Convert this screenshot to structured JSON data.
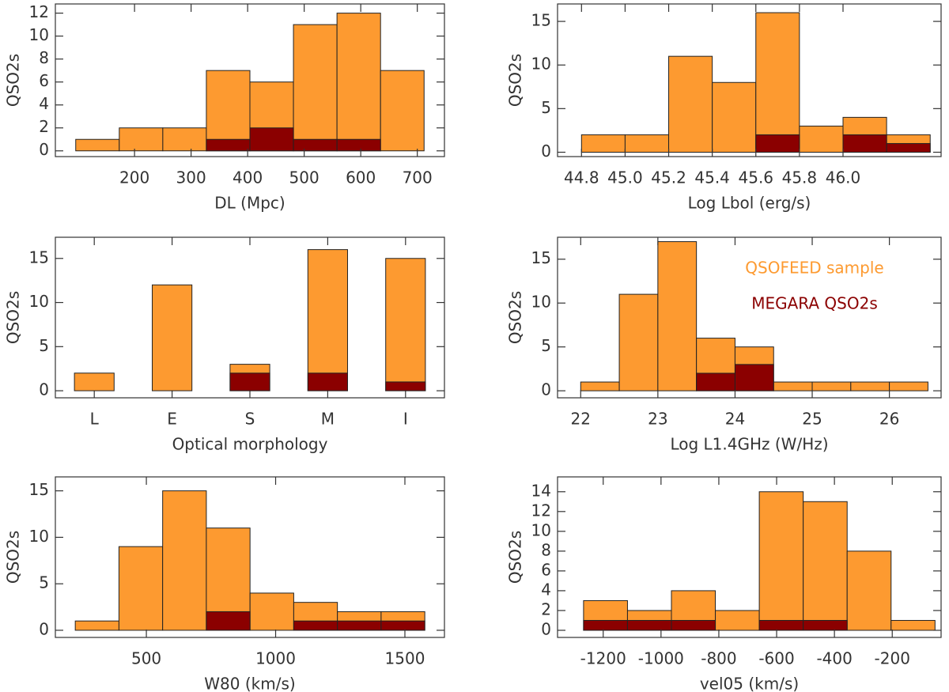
{
  "chart_data": [
    {
      "type": "histogram",
      "xlabel": "DL (Mpc)",
      "ylabel": "QSO2s",
      "bins": [
        96,
        173,
        250,
        327,
        404,
        481,
        558,
        635,
        712
      ],
      "series": [
        {
          "name": "QSOFEED sample",
          "color": "#fd9a30",
          "values": [
            1,
            2,
            2,
            7,
            6,
            11,
            12,
            7
          ]
        },
        {
          "name": "MEGARA QSO2s",
          "color": "#8b0000",
          "values": [
            0,
            0,
            0,
            1,
            2,
            1,
            1,
            0
          ]
        }
      ],
      "xlim": [
        60,
        748
      ],
      "xticks": [
        200,
        300,
        400,
        500,
        600,
        700
      ],
      "ylim": [
        -0.5,
        12.8
      ],
      "yticks": [
        0,
        2,
        4,
        6,
        8,
        10,
        12
      ]
    },
    {
      "type": "histogram",
      "xlabel": "Log Lbol (erg/s)",
      "ylabel": "QSO2s",
      "bins": [
        44.8,
        45.0,
        45.2,
        45.4,
        45.6,
        45.8,
        46.0,
        46.2,
        46.4
      ],
      "series": [
        {
          "name": "QSOFEED sample",
          "color": "#fd9a30",
          "values": [
            2,
            2,
            11,
            8,
            16,
            3,
            4,
            2
          ]
        },
        {
          "name": "MEGARA QSO2s",
          "color": "#8b0000",
          "values": [
            0,
            0,
            0,
            0,
            2,
            0,
            2,
            1
          ]
        }
      ],
      "xlim": [
        44.69,
        46.45
      ],
      "xticks": [
        44.8,
        {
          "value": 45,
          "label": "45.0"
        },
        45.2,
        45.4,
        45.6,
        45.8,
        {
          "value": 46,
          "label": "46.0"
        }
      ],
      "ylim": [
        -0.5,
        17
      ],
      "yticks": [
        0,
        5,
        10,
        15
      ]
    },
    {
      "type": "bar",
      "xlabel": "Optical morphology",
      "ylabel": "QSO2s",
      "categories": [
        "L",
        "E",
        "S",
        "M",
        "I"
      ],
      "series": [
        {
          "name": "QSOFEED sample",
          "color": "#fd9a30",
          "values": [
            2,
            12,
            3,
            16,
            15
          ]
        },
        {
          "name": "MEGARA QSO2s",
          "color": "#8b0000",
          "values": [
            0,
            0,
            2,
            2,
            1
          ]
        }
      ],
      "ylim": [
        -0.8,
        17.4
      ],
      "yticks": [
        0,
        5,
        10,
        15
      ]
    },
    {
      "type": "histogram",
      "xlabel": "Log L1.4GHz (W/Hz)",
      "ylabel": "QSO2s",
      "bins": [
        22,
        22.5,
        23,
        23.5,
        24,
        24.5,
        25,
        25.5,
        26,
        26.5
      ],
      "series": [
        {
          "name": "QSOFEED sample",
          "color": "#fd9a30",
          "values": [
            1,
            11,
            17,
            6,
            5,
            1,
            1,
            1,
            1
          ]
        },
        {
          "name": "MEGARA QSO2s",
          "color": "#8b0000",
          "values": [
            0,
            0,
            0,
            2,
            3,
            0,
            0,
            0,
            0
          ]
        }
      ],
      "xlim": [
        21.7,
        26.67
      ],
      "xticks": [
        22,
        23,
        24,
        25,
        26
      ],
      "ylim": [
        -0.8,
        17.5
      ],
      "yticks": [
        0,
        5,
        10,
        15
      ],
      "legend": "upper right"
    },
    {
      "type": "histogram",
      "xlabel": "W80 (km/s)",
      "ylabel": "QSO2s",
      "bins": [
        225,
        394,
        563,
        732,
        901,
        1070,
        1239,
        1408,
        1577
      ],
      "series": [
        {
          "name": "QSOFEED sample",
          "color": "#fd9a30",
          "values": [
            1,
            9,
            15,
            11,
            4,
            3,
            2,
            2
          ]
        },
        {
          "name": "MEGARA QSO2s",
          "color": "#8b0000",
          "values": [
            0,
            0,
            0,
            2,
            0,
            1,
            1,
            1
          ]
        }
      ],
      "xlim": [
        148,
        1653
      ],
      "xticks": [
        500,
        1000,
        1500
      ],
      "ylim": [
        -0.77,
        16.5
      ],
      "yticks": [
        0,
        5,
        10,
        15
      ]
    },
    {
      "type": "histogram",
      "xlabel": "vel05 (km/s)",
      "ylabel": "QSO2s",
      "bins": [
        -1268,
        -1116,
        -964,
        -812,
        -660,
        -508,
        -356,
        -204,
        -52
      ],
      "series": [
        {
          "name": "QSOFEED sample",
          "color": "#fd9a30",
          "values": [
            3,
            2,
            4,
            2,
            14,
            13,
            8,
            1
          ]
        },
        {
          "name": "MEGARA QSO2s",
          "color": "#8b0000",
          "values": [
            1,
            1,
            1,
            0,
            1,
            1,
            0,
            0
          ]
        }
      ],
      "xlim": [
        -1358,
        -31
      ],
      "xticks": [
        -1200,
        -1000,
        -800,
        -600,
        -400,
        -200
      ],
      "ylim": [
        -0.72,
        15.5
      ],
      "yticks": [
        0,
        2,
        4,
        6,
        8,
        10,
        12,
        14
      ]
    }
  ]
}
